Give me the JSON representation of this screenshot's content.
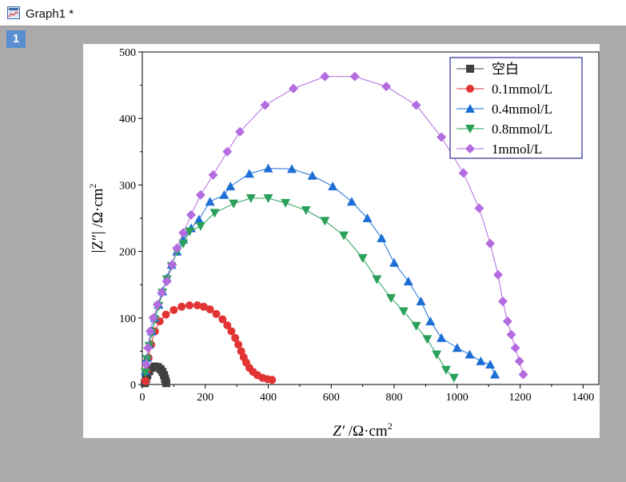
{
  "window": {
    "title": "Graph1 *",
    "layer_number": "1"
  },
  "icons": {
    "window_icon": "graph-window-icon"
  },
  "chart_data": {
    "type": "scatter",
    "xlabel_parts": [
      "Z′",
      "/Ω·cm",
      "2"
    ],
    "ylabel_parts": [
      "|Z″|",
      "/Ω·cm",
      "2"
    ],
    "xlim": [
      0,
      1450
    ],
    "ylim": [
      0,
      500
    ],
    "x_ticks": [
      "0",
      "200",
      "400",
      "600",
      "800",
      "1000",
      "1200",
      "1400"
    ],
    "y_ticks": [
      "0",
      "100",
      "200",
      "300",
      "400",
      "500"
    ],
    "grid": false,
    "legend_position": "top-right",
    "series": [
      {
        "name": "空白",
        "color": "#404040",
        "marker": "square",
        "points": [
          [
            8,
            2
          ],
          [
            12,
            8
          ],
          [
            16,
            14
          ],
          [
            22,
            20
          ],
          [
            30,
            25
          ],
          [
            40,
            27
          ],
          [
            50,
            26
          ],
          [
            58,
            23
          ],
          [
            64,
            19
          ],
          [
            69,
            14
          ],
          [
            72,
            9
          ],
          [
            74,
            5
          ],
          [
            76,
            2
          ]
        ]
      },
      {
        "name": "0.1mmol/L",
        "color": "#e23434",
        "marker": "circle",
        "points": [
          [
            10,
            5
          ],
          [
            14,
            20
          ],
          [
            20,
            40
          ],
          [
            28,
            60
          ],
          [
            40,
            80
          ],
          [
            55,
            95
          ],
          [
            75,
            105
          ],
          [
            100,
            112
          ],
          [
            125,
            117
          ],
          [
            150,
            119
          ],
          [
            175,
            119
          ],
          [
            195,
            117
          ],
          [
            215,
            113
          ],
          [
            235,
            106
          ],
          [
            255,
            98
          ],
          [
            270,
            89
          ],
          [
            283,
            80
          ],
          [
            295,
            70
          ],
          [
            305,
            60
          ],
          [
            314,
            50
          ],
          [
            322,
            41
          ],
          [
            330,
            33
          ],
          [
            340,
            25
          ],
          [
            352,
            19
          ],
          [
            366,
            14
          ],
          [
            382,
            10
          ],
          [
            398,
            8
          ],
          [
            412,
            7
          ]
        ]
      },
      {
        "name": "0.4mmol/L",
        "color": "#1d6fd6",
        "marker": "triangle-up",
        "points": [
          [
            10,
            20
          ],
          [
            15,
            40
          ],
          [
            22,
            60
          ],
          [
            30,
            80
          ],
          [
            40,
            100
          ],
          [
            52,
            120
          ],
          [
            64,
            140
          ],
          [
            78,
            160
          ],
          [
            93,
            180
          ],
          [
            110,
            200
          ],
          [
            130,
            218
          ],
          [
            155,
            235
          ],
          [
            180,
            248
          ],
          [
            215,
            275
          ],
          [
            260,
            285
          ],
          [
            280,
            298
          ],
          [
            340,
            317
          ],
          [
            400,
            325
          ],
          [
            475,
            324
          ],
          [
            540,
            314
          ],
          [
            605,
            298
          ],
          [
            665,
            275
          ],
          [
            715,
            250
          ],
          [
            760,
            220
          ],
          [
            800,
            183
          ],
          [
            845,
            155
          ],
          [
            885,
            125
          ],
          [
            915,
            95
          ],
          [
            950,
            70
          ],
          [
            1000,
            55
          ],
          [
            1040,
            45
          ],
          [
            1075,
            35
          ],
          [
            1105,
            30
          ],
          [
            1120,
            15
          ]
        ]
      },
      {
        "name": "0.8mmol/L",
        "color": "#2aa05a",
        "marker": "triangle-down",
        "points": [
          [
            10,
            18
          ],
          [
            15,
            38
          ],
          [
            22,
            58
          ],
          [
            30,
            78
          ],
          [
            40,
            98
          ],
          [
            52,
            118
          ],
          [
            64,
            138
          ],
          [
            78,
            158
          ],
          [
            93,
            178
          ],
          [
            110,
            200
          ],
          [
            130,
            212
          ],
          [
            150,
            230
          ],
          [
            185,
            238
          ],
          [
            230,
            258
          ],
          [
            290,
            272
          ],
          [
            345,
            280
          ],
          [
            400,
            280
          ],
          [
            455,
            273
          ],
          [
            520,
            262
          ],
          [
            580,
            246
          ],
          [
            640,
            224
          ],
          [
            700,
            190
          ],
          [
            745,
            158
          ],
          [
            790,
            130
          ],
          [
            830,
            110
          ],
          [
            870,
            88
          ],
          [
            905,
            68
          ],
          [
            935,
            45
          ],
          [
            965,
            22
          ],
          [
            990,
            10
          ]
        ]
      },
      {
        "name": "1mmol/L",
        "color": "#b36bdf",
        "marker": "diamond",
        "points": [
          [
            12,
            30
          ],
          [
            18,
            55
          ],
          [
            25,
            80
          ],
          [
            35,
            100
          ],
          [
            48,
            120
          ],
          [
            62,
            138
          ],
          [
            78,
            155
          ],
          [
            95,
            180
          ],
          [
            110,
            205
          ],
          [
            130,
            228
          ],
          [
            155,
            255
          ],
          [
            185,
            285
          ],
          [
            225,
            315
          ],
          [
            270,
            350
          ],
          [
            310,
            380
          ],
          [
            390,
            420
          ],
          [
            480,
            445
          ],
          [
            580,
            463
          ],
          [
            675,
            463
          ],
          [
            775,
            448
          ],
          [
            870,
            420
          ],
          [
            950,
            372
          ],
          [
            1020,
            318
          ],
          [
            1070,
            265
          ],
          [
            1105,
            212
          ],
          [
            1130,
            165
          ],
          [
            1145,
            125
          ],
          [
            1160,
            95
          ],
          [
            1172,
            75
          ],
          [
            1185,
            55
          ],
          [
            1198,
            35
          ],
          [
            1210,
            15
          ]
        ]
      }
    ]
  }
}
